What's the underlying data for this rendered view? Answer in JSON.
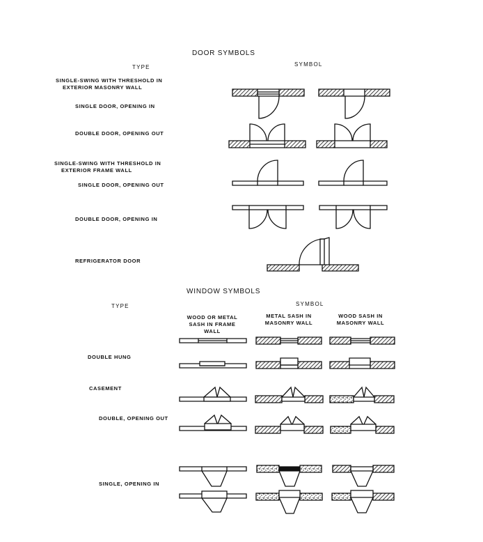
{
  "door": {
    "title": "DOOR SYMBOLS",
    "type_header": "TYPE",
    "symbol_header": "SYMBOL",
    "rows": [
      {
        "lines": [
          "SINGLE-SWING WITH THRESHOLD IN",
          "EXTERIOR MASONRY WALL"
        ]
      },
      {
        "lines": [
          "SINGLE DOOR, OPENING IN"
        ]
      },
      {
        "lines": [
          "DOUBLE DOOR, OPENING OUT"
        ]
      },
      {
        "lines": [
          "SINGLE-SWING WITH THRESHOLD IN",
          "EXTERIOR FRAME WALL"
        ]
      },
      {
        "lines": [
          "SINGLE DOOR, OPENING OUT"
        ]
      },
      {
        "lines": [
          "DOUBLE DOOR, OPENING IN"
        ]
      },
      {
        "lines": [
          "REFRIGERATOR DOOR"
        ]
      }
    ]
  },
  "window": {
    "title": "WINDOW SYMBOLS",
    "type_header": "TYPE",
    "symbol_header": "SYMBOL",
    "columns": [
      {
        "lines": [
          "WOOD OR METAL",
          "SASH IN FRAME",
          "WALL"
        ]
      },
      {
        "lines": [
          "METAL SASH IN",
          "MASONRY WALL"
        ]
      },
      {
        "lines": [
          "WOOD SASH IN",
          "MASONRY WALL"
        ]
      }
    ],
    "rows": [
      {
        "label": "DOUBLE HUNG"
      },
      {
        "label": "CASEMENT"
      },
      {
        "label": "DOUBLE, OPENING OUT"
      },
      {
        "label": "SINGLE, OPENING IN"
      }
    ]
  },
  "colors": {
    "ink": "#111111",
    "paper": "#ffffff"
  }
}
